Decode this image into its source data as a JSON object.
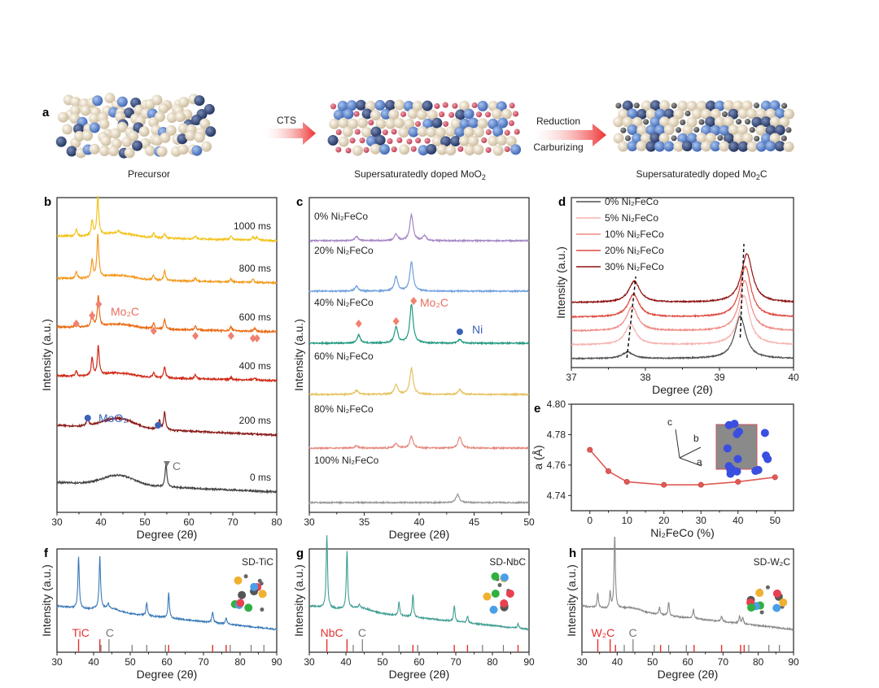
{
  "panel_a": {
    "label": "a",
    "stage1": "Precursor",
    "arrow1": "CTS",
    "stage2_prefix": "Supersaturatedly doped MoO",
    "stage2_sub": "2",
    "arrow2_line1": "Reduction",
    "arrow2_line2": "Carburizing",
    "stage3_prefix": "Supersaturatedly doped Mo",
    "stage3_sub": "2",
    "stage3_suffix": "C"
  },
  "chart_data": [
    {
      "id": "b",
      "label": "b",
      "type": "line",
      "xlabel": "Degree (2θ)",
      "ylabel": "Intensity (a.u.)",
      "xlim": [
        30,
        80
      ],
      "xticks": [
        30,
        40,
        50,
        60,
        70,
        80
      ],
      "series": [
        {
          "name": "1000 ms",
          "color": "#f2c31c",
          "peaks": [
            [
              34.4,
              8
            ],
            [
              38,
              18
            ],
            [
              39.3,
              48
            ],
            [
              44,
              3
            ],
            [
              52,
              6
            ],
            [
              54.5,
              6
            ],
            [
              61.5,
              4
            ],
            [
              69.6,
              5
            ],
            [
              74.6,
              4
            ],
            [
              75.5,
              4
            ]
          ]
        },
        {
          "name": "800 ms",
          "color": "#f39a1e",
          "peaks": [
            [
              34.4,
              8
            ],
            [
              38,
              22
            ],
            [
              39.3,
              52
            ],
            [
              52,
              6
            ],
            [
              54.5,
              12
            ],
            [
              61.5,
              4
            ],
            [
              69.6,
              4
            ],
            [
              74.6,
              4
            ]
          ]
        },
        {
          "name": "600 ms",
          "color": "#ea6b14",
          "peaks": [
            [
              34.4,
              8
            ],
            [
              38,
              18
            ],
            [
              39.4,
              38
            ],
            [
              52,
              7
            ],
            [
              54.5,
              12
            ],
            [
              61.5,
              5
            ],
            [
              69.6,
              5
            ],
            [
              75,
              4
            ]
          ]
        },
        {
          "name": "400 ms",
          "color": "#cf2a16",
          "peaks": [
            [
              34.4,
              6
            ],
            [
              38,
              22
            ],
            [
              39.4,
              36
            ],
            [
              52,
              6
            ],
            [
              54.5,
              14
            ],
            [
              61.5,
              5
            ],
            [
              69.6,
              3
            ],
            [
              75,
              3
            ]
          ]
        },
        {
          "name": "200 ms",
          "color": "#8a1c1a",
          "peaks": [
            [
              37,
              10
            ],
            [
              53.3,
              12
            ],
            [
              54.5,
              22
            ]
          ]
        },
        {
          "name": "0 ms",
          "color": "#444444",
          "peaks": [
            [
              54.8,
              28
            ]
          ]
        }
      ],
      "annotations": [
        {
          "text": "Mo₂C",
          "marker": "diamond",
          "color": "#f08070",
          "positions": [
            34.4,
            38,
            39.5,
            52,
            61.5,
            69.6,
            74.6,
            75.5
          ]
        },
        {
          "text": "MoO₂",
          "marker": "circle",
          "color": "#3a62b8",
          "positions": [
            37,
            53
          ]
        },
        {
          "text": "C",
          "marker": "triangle",
          "color": "#777777",
          "positions": [
            55
          ]
        }
      ]
    },
    {
      "id": "c",
      "label": "c",
      "type": "line",
      "xlabel": "Degree (2θ)",
      "ylabel": "Intensity (a.u.)",
      "xlim": [
        30,
        50
      ],
      "xticks": [
        30,
        35,
        40,
        45,
        50
      ],
      "series": [
        {
          "name": "0% Ni₂FeCo",
          "color": "#a585c4",
          "peaks": [
            [
              34.3,
              5
            ],
            [
              37.9,
              8
            ],
            [
              39.3,
              32
            ],
            [
              40.5,
              6
            ]
          ]
        },
        {
          "name": "20% Ni₂FeCo",
          "color": "#6f9fdc",
          "peaks": [
            [
              34.3,
              6
            ],
            [
              37.9,
              18
            ],
            [
              39.3,
              36
            ]
          ]
        },
        {
          "name": "40% Ni₂FeCo",
          "color": "#239a80",
          "peaks": [
            [
              34.5,
              10
            ],
            [
              37.9,
              20
            ],
            [
              39.3,
              48
            ],
            [
              43.7,
              5
            ]
          ]
        },
        {
          "name": "60% Ni₂FeCo",
          "color": "#e4c25e",
          "peaks": [
            [
              34.3,
              5
            ],
            [
              37.9,
              12
            ],
            [
              39.3,
              32
            ],
            [
              43.7,
              6
            ]
          ]
        },
        {
          "name": "80% Ni₂FeCo",
          "color": "#e58a80",
          "peaks": [
            [
              34.3,
              3
            ],
            [
              37.9,
              6
            ],
            [
              39.3,
              14
            ],
            [
              43.7,
              14
            ]
          ]
        },
        {
          "name": "100% Ni₂FeCo",
          "color": "#999999",
          "peaks": [
            [
              43.5,
              10
            ]
          ]
        }
      ],
      "annotations": [
        {
          "text": "Mo₂C",
          "marker": "diamond",
          "color": "#f08070",
          "positions": [
            34.5,
            37.9,
            39.5
          ]
        },
        {
          "text": "Ni",
          "marker": "circle",
          "color": "#3a62b8",
          "positions": [
            43.7
          ]
        }
      ]
    },
    {
      "id": "d",
      "label": "d",
      "type": "line",
      "xlabel": "Degree (2θ)",
      "ylabel": "Intensity (a.u.)",
      "xlim": [
        37,
        40
      ],
      "xticks": [
        37,
        38,
        39,
        40
      ],
      "series": [
        {
          "name": "0% Ni₂FeCo",
          "color": "#505050",
          "peaks": [
            [
              37.76,
              8
            ],
            [
              39.28,
              52
            ]
          ]
        },
        {
          "name": "5% Ni₂FeCo",
          "color": "#f6b3b0",
          "peaks": [
            [
              37.8,
              25
            ],
            [
              39.33,
              60
            ]
          ]
        },
        {
          "name": "10% Ni₂FeCo",
          "color": "#ee8a84",
          "peaks": [
            [
              37.82,
              30
            ],
            [
              39.34,
              62
            ]
          ]
        },
        {
          "name": "20% Ni₂FeCo",
          "color": "#df4a40",
          "peaks": [
            [
              37.84,
              28
            ],
            [
              39.35,
              62
            ]
          ]
        },
        {
          "name": "30% Ni₂FeCo",
          "color": "#8e1212",
          "peaks": [
            [
              37.85,
              26
            ],
            [
              39.37,
              60
            ]
          ]
        }
      ]
    },
    {
      "id": "e",
      "label": "e",
      "type": "line",
      "xlabel": "Ni₂FeCo (%)",
      "ylabel": "a (Å)",
      "xlim": [
        -5,
        55
      ],
      "ylim": [
        4.73,
        4.8
      ],
      "xticks": [
        0,
        10,
        20,
        30,
        40,
        50
      ],
      "yticks": [
        "4.74",
        "4.76",
        "4.78",
        "4.80"
      ],
      "x": [
        0,
        5,
        10,
        20,
        30,
        40,
        50
      ],
      "y": [
        4.77,
        4.756,
        4.749,
        4.747,
        4.747,
        4.749,
        4.752
      ],
      "color": "#e05a55",
      "inset_axes": [
        "c",
        "b",
        "a"
      ]
    },
    {
      "id": "f",
      "label": "f",
      "type": "line",
      "title": "SD-TiC",
      "xlabel": "Degree (2θ)",
      "ylabel": "Intensity (a.u.)",
      "xlim": [
        30,
        90
      ],
      "xticks": [
        30,
        40,
        50,
        60,
        70,
        80,
        90
      ],
      "color": "#3a7ab8",
      "peaks": [
        [
          35.9,
          70
        ],
        [
          41.7,
          72
        ],
        [
          44,
          6
        ],
        [
          54.5,
          18
        ],
        [
          60.5,
          34
        ],
        [
          72.5,
          15
        ],
        [
          76.2,
          9
        ]
      ],
      "ref_labels": [
        "TiC",
        "C"
      ],
      "ref_primary": [
        35.9,
        41.7,
        60.5,
        72.5,
        76.2
      ],
      "ref_secondary": [
        42,
        44.2,
        50.5,
        54.5,
        59.6,
        77.3,
        83,
        86.5
      ]
    },
    {
      "id": "g",
      "label": "g",
      "type": "line",
      "title": "SD-NbC",
      "xlabel": "Degree (2θ)",
      "ylabel": "Intensity (a.u.)",
      "xlim": [
        30,
        90
      ],
      "xticks": [
        30,
        40,
        50,
        60,
        70,
        80,
        90
      ],
      "color": "#3e9d92",
      "peaks": [
        [
          34.8,
          100
        ],
        [
          40.3,
          78
        ],
        [
          43.7,
          4
        ],
        [
          54.5,
          18
        ],
        [
          58.3,
          30
        ],
        [
          69.6,
          22
        ],
        [
          73.2,
          10
        ],
        [
          87,
          6
        ]
      ],
      "ref_labels": [
        "NbC",
        "C"
      ],
      "ref_primary": [
        34.8,
        40.3,
        58.3,
        69.6,
        73.2,
        87
      ],
      "ref_secondary": [
        42,
        44.5,
        54.5,
        59.6,
        77.3,
        83
      ]
    },
    {
      "id": "h",
      "label": "h",
      "type": "line",
      "title": "SD-W₂C",
      "xlabel": "Degree (2θ)",
      "ylabel": "Intensity (a.u.)",
      "xlim": [
        30,
        90
      ],
      "xticks": [
        30,
        40,
        50,
        60,
        70,
        80,
        90
      ],
      "color": "#8a8a8a",
      "peaks": [
        [
          34.5,
          20
        ],
        [
          38,
          22
        ],
        [
          39.3,
          100
        ],
        [
          52,
          10
        ],
        [
          54.6,
          18
        ],
        [
          61.6,
          12
        ],
        [
          69.6,
          8
        ],
        [
          74.7,
          10
        ],
        [
          75.6,
          8
        ]
      ],
      "ref_labels": [
        "W₂C",
        "C"
      ],
      "ref_primary": [
        34.5,
        38,
        39.5,
        52.3,
        61.8,
        69.6,
        75,
        76
      ],
      "ref_secondary": [
        42,
        44.5,
        50.5,
        54.6,
        59.6,
        77.3,
        83,
        86
      ]
    }
  ],
  "colors": {
    "arrow": "#ee3030",
    "ref_primary": "#e53030",
    "ref_secondary": "#777777"
  }
}
